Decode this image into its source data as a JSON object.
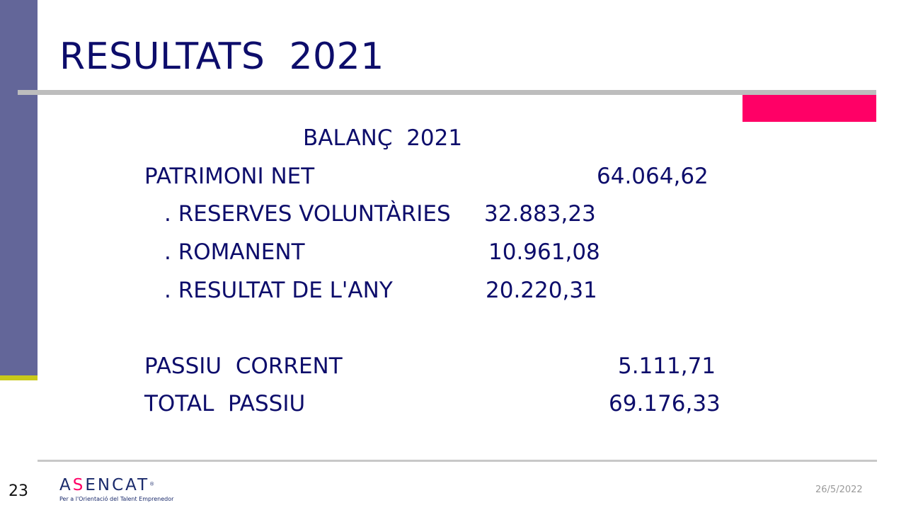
{
  "slide": {
    "title": "RESULTATS  2021",
    "page_number": "23",
    "date": "26/5/2022"
  },
  "balance": {
    "heading": "BALANÇ  2021",
    "equity_label": "PATRIMONI NET",
    "equity_value": "64.064,62",
    "items": [
      {
        "label": ". RESERVES VOLUNTÀRIES",
        "value": "32.883,23"
      },
      {
        "label": ". ROMANENT",
        "value": "10.961,08"
      },
      {
        "label": ". RESULTAT DE L'ANY",
        "value": "20.220,31"
      }
    ],
    "current_liabilities_label": "PASSIU  CORRENT",
    "current_liabilities_value": "5.111,71",
    "total_label": "TOTAL  PASSIU",
    "total_value": "69.176,33"
  },
  "logo": {
    "name_prefix": "A",
    "name_emph": "S",
    "name_rest": "ENCAT",
    "registered": "®",
    "tagline": "Per a l'Orientació del Talent Emprenedor"
  },
  "colors": {
    "title": "#0d0d6b",
    "side_bar": "#636699",
    "accent_pink": "#ff0066",
    "accent_yellow": "#c9c91a"
  }
}
